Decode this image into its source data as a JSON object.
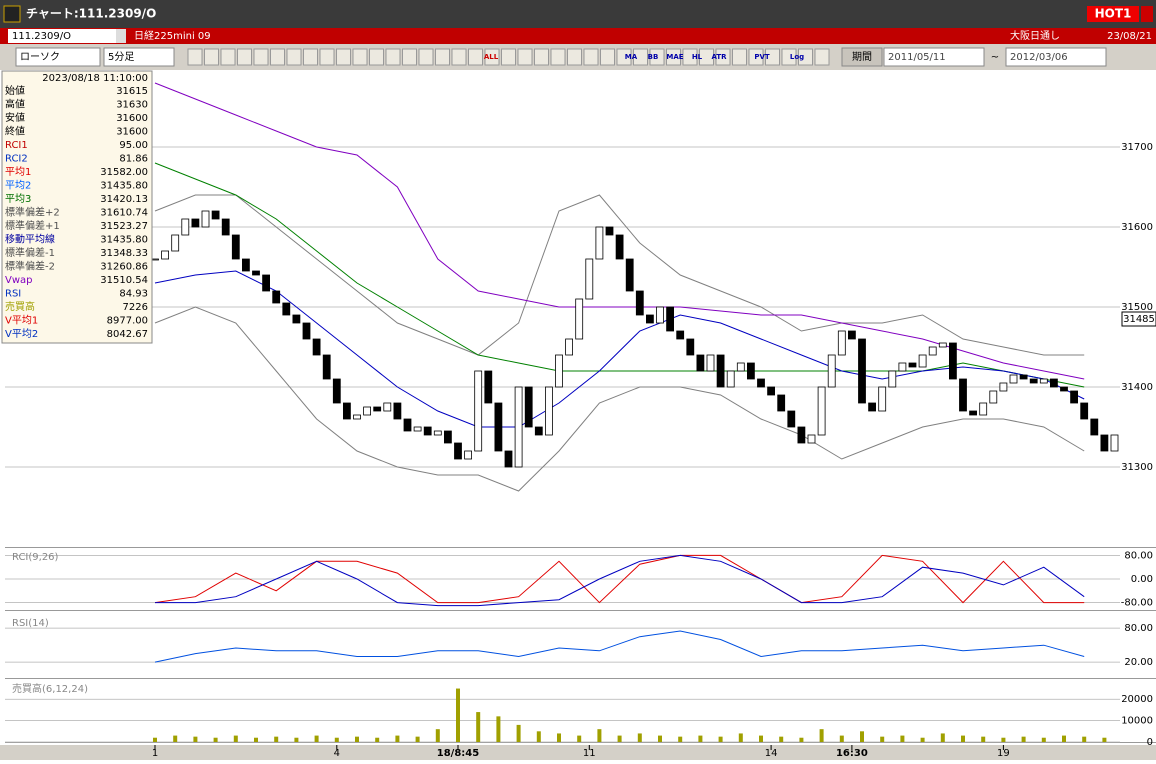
{
  "window": {
    "title": "チャート:111.2309/O",
    "badge": "HOT1"
  },
  "header": {
    "symbol": "111.2309/O",
    "name": "日経225mini 09",
    "session": "大阪日通し",
    "date": "23/08/21"
  },
  "toolbar": {
    "chart_kind": "ローソク",
    "interval": "5分足",
    "buttons": [
      "ALL",
      "MA",
      "BB",
      "MAE",
      "HL",
      "ATR",
      "PVT",
      "Log"
    ],
    "period_label": "期間",
    "from": "2011/05/11",
    "sep": "~",
    "to": "2012/03/06"
  },
  "info": {
    "timestamp": "2023/08/18  11:10:00",
    "rows": [
      [
        "始値",
        "31615",
        "#000"
      ],
      [
        "高値",
        "31630",
        "#000"
      ],
      [
        "安値",
        "31600",
        "#000"
      ],
      [
        "終値",
        "31600",
        "#000"
      ],
      [
        "RCI1",
        "95.00",
        "#c00000"
      ],
      [
        "RCI2",
        "81.86",
        "#0030c0"
      ],
      [
        "平均1",
        "31582.00",
        "#e00000"
      ],
      [
        "平均2",
        "31435.80",
        "#0060ff"
      ],
      [
        "平均3",
        "31420.13",
        "#007000"
      ],
      [
        "標準偏差+2",
        "31610.74",
        "#505050"
      ],
      [
        "標準偏差+1",
        "31523.27",
        "#505050"
      ],
      [
        "移動平均線",
        "31435.80",
        "#0000a0"
      ],
      [
        "標準偏差-1",
        "31348.33",
        "#505050"
      ],
      [
        "標準偏差-2",
        "31260.86",
        "#505050"
      ],
      [
        "Vwap",
        "31510.54",
        "#8000c0"
      ],
      [
        "RSI",
        "84.93",
        "#0030c0"
      ],
      [
        "売買高",
        "7226",
        "#a0a000"
      ],
      [
        "V平均1",
        "8977.00",
        "#e00000"
      ],
      [
        "V平均2",
        "8042.67",
        "#0030c0"
      ]
    ]
  },
  "chart_data": [
    {
      "type": "candlestick",
      "ylim": [
        31200,
        31790
      ],
      "yticks": [
        31300,
        31400,
        31500,
        31600,
        31700
      ],
      "last_price": 31485,
      "last_price_label": "31485",
      "xticks": [
        {
          "value": 0,
          "label": "1"
        },
        {
          "value": 18,
          "label": "4"
        },
        {
          "value": 30,
          "label": "18/8:45"
        },
        {
          "value": 43,
          "label": "11"
        },
        {
          "value": 61,
          "label": "14"
        },
        {
          "value": 69,
          "label": "16:30"
        },
        {
          "value": 84,
          "label": "19"
        }
      ],
      "close": [
        31560,
        31570,
        31590,
        31610,
        31600,
        31620,
        31610,
        31590,
        31560,
        31545,
        31540,
        31520,
        31505,
        31490,
        31480,
        31460,
        31440,
        31410,
        31380,
        31360,
        31365,
        31375,
        31370,
        31380,
        31360,
        31345,
        31350,
        31340,
        31345,
        31330,
        31310,
        31320,
        31420,
        31380,
        31320,
        31300,
        31400,
        31350,
        31340,
        31400,
        31440,
        31460,
        31510,
        31560,
        31600,
        31590,
        31560,
        31520,
        31490,
        31480,
        31500,
        31470,
        31460,
        31440,
        31420,
        31440,
        31400,
        31420,
        31430,
        31410,
        31400,
        31390,
        31370,
        31350,
        31330,
        31340,
        31400,
        31440,
        31470,
        31460,
        31380,
        31370,
        31400,
        31420,
        31430,
        31425,
        31440,
        31450,
        31455,
        31410,
        31370,
        31365,
        31380,
        31395,
        31405,
        31415,
        31410,
        31405,
        31410,
        31400,
        31395,
        31380,
        31360,
        31340,
        31320,
        31340
      ],
      "series": [
        {
          "color": "#808080",
          "values": [
            31620,
            31640,
            31640,
            31600,
            31560,
            31520,
            31480,
            31460,
            31440,
            31480,
            31620,
            31640,
            31580,
            31540,
            31520,
            31500,
            31470,
            31480,
            31480,
            31490,
            31460,
            31450,
            31440,
            31440
          ]
        },
        {
          "color": "#808080",
          "values": [
            31480,
            31500,
            31480,
            31420,
            31360,
            31320,
            31300,
            31290,
            31290,
            31270,
            31320,
            31380,
            31400,
            31400,
            31390,
            31360,
            31340,
            31310,
            31330,
            31350,
            31360,
            31360,
            31350,
            31320
          ]
        },
        {
          "color": "#8000c0",
          "values": [
            31780,
            31760,
            31740,
            31720,
            31700,
            31690,
            31650,
            31560,
            31520,
            31510,
            31500,
            31500,
            31500,
            31500,
            31495,
            31490,
            31490,
            31480,
            31470,
            31460,
            31445,
            31430,
            31420,
            31410
          ]
        },
        {
          "color": "#008000",
          "values": [
            31680,
            31660,
            31640,
            31610,
            31570,
            31530,
            31500,
            31470,
            31440,
            31430,
            31420,
            31420,
            31420,
            31420,
            31420,
            31420,
            31420,
            31420,
            31420,
            31420,
            31430,
            31420,
            31410,
            31400
          ]
        },
        {
          "color": "#0000c0",
          "values": [
            31530,
            31540,
            31545,
            31520,
            31480,
            31440,
            31400,
            31370,
            31350,
            31350,
            31380,
            31420,
            31470,
            31490,
            31480,
            31460,
            31440,
            31420,
            31410,
            31420,
            31425,
            31420,
            31410,
            31385
          ]
        }
      ]
    },
    {
      "type": "line",
      "title": "RCI(9,26)",
      "ylim": [
        -105,
        105
      ],
      "yticks": [
        {
          "value": 80,
          "label": "80.00"
        },
        {
          "value": 0,
          "label": "0.00"
        },
        {
          "value": -80,
          "label": "-80.00"
        }
      ],
      "series": [
        {
          "color": "#e00000",
          "values": [
            -80,
            -60,
            20,
            -40,
            60,
            60,
            20,
            -80,
            -80,
            -60,
            60,
            -80,
            50,
            80,
            80,
            0,
            -80,
            -60,
            80,
            60,
            -80,
            60,
            -80,
            -80
          ]
        },
        {
          "color": "#0000c0",
          "values": [
            -80,
            -80,
            -60,
            0,
            60,
            0,
            -80,
            -90,
            -90,
            -80,
            -70,
            0,
            60,
            80,
            60,
            0,
            -80,
            -80,
            -60,
            40,
            20,
            -20,
            40,
            -60
          ]
        }
      ]
    },
    {
      "type": "line",
      "title": "RSI(14)",
      "ylim": [
        -8,
        105
      ],
      "yticks": [
        {
          "value": 80,
          "label": "80.00"
        },
        {
          "value": 20,
          "label": "20.00"
        }
      ],
      "series": [
        {
          "color": "#0050e0",
          "values": [
            20,
            35,
            45,
            40,
            40,
            30,
            30,
            40,
            40,
            30,
            45,
            40,
            65,
            75,
            60,
            30,
            40,
            40,
            45,
            50,
            40,
            45,
            50,
            30
          ]
        }
      ]
    },
    {
      "type": "bar",
      "title": "売買高(6,12,24)",
      "ylim": [
        0,
        29000
      ],
      "yticks": [
        0,
        10000,
        20000
      ],
      "color": "#a0a000",
      "values": [
        2000,
        3000,
        2500,
        2000,
        3000,
        2000,
        2500,
        2000,
        3000,
        2000,
        2500,
        2000,
        3000,
        2500,
        6000,
        25000,
        14000,
        12000,
        8000,
        5000,
        4000,
        3000,
        6000,
        3000,
        4000,
        3000,
        2500,
        3000,
        2500,
        4000,
        3000,
        2500,
        2000,
        6000,
        3000,
        5000,
        2500,
        3000,
        2000,
        4000,
        3000,
        2500,
        2000,
        2500,
        2000,
        3000,
        2500,
        2000
      ]
    }
  ]
}
